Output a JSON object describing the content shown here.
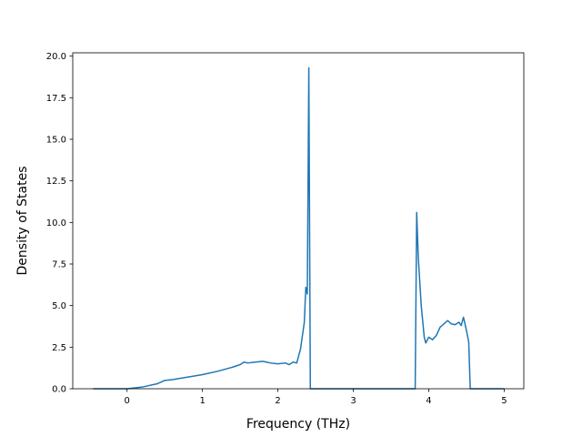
{
  "chart_data": {
    "type": "line",
    "title": "",
    "xlabel": "Frequency (THz)",
    "ylabel": "Density of States",
    "xlim": [
      -0.72,
      5.26
    ],
    "ylim": [
      0,
      20.2
    ],
    "xticks": [
      0,
      1,
      2,
      3,
      4,
      5
    ],
    "xtick_labels": [
      "0",
      "1",
      "2",
      "3",
      "4",
      "5"
    ],
    "yticks": [
      0,
      2.5,
      5,
      7.5,
      10,
      12.5,
      15,
      17.5,
      20
    ],
    "ytick_labels": [
      "0.0",
      "2.5",
      "5.0",
      "7.5",
      "10.0",
      "12.5",
      "15.0",
      "17.5",
      "20.0"
    ],
    "grid": false,
    "legend": "none",
    "colors": {
      "line": "#1f77b4",
      "axes": "#000000",
      "background": "#ffffff"
    },
    "series": [
      {
        "x": [
          -0.45,
          0.0,
          0.2,
          0.4,
          0.5,
          0.6,
          0.8,
          1.0,
          1.2,
          1.4,
          1.5,
          1.55,
          1.6,
          1.7,
          1.8,
          1.85,
          1.9,
          2.0,
          2.1,
          2.15,
          2.2,
          2.25,
          2.3,
          2.35,
          2.37,
          2.39,
          2.41,
          2.43,
          2.45,
          2.5,
          3.0,
          3.5,
          3.8,
          3.82,
          3.84,
          3.86,
          3.9,
          3.94,
          3.96,
          4.0,
          4.05,
          4.1,
          4.15,
          4.2,
          4.25,
          4.3,
          4.35,
          4.4,
          4.43,
          4.46,
          4.5,
          4.53,
          4.55,
          4.6,
          4.8,
          5.0
        ],
        "y": [
          0,
          0,
          0.1,
          0.3,
          0.5,
          0.55,
          0.7,
          0.85,
          1.05,
          1.3,
          1.45,
          1.6,
          1.55,
          1.6,
          1.65,
          1.6,
          1.55,
          1.5,
          1.55,
          1.45,
          1.6,
          1.55,
          2.4,
          4.0,
          6.1,
          5.7,
          19.3,
          0,
          0,
          0,
          0,
          0,
          0,
          0,
          10.6,
          8.0,
          5.0,
          3.1,
          2.75,
          3.1,
          2.95,
          3.2,
          3.7,
          3.9,
          4.1,
          3.9,
          3.85,
          4.0,
          3.8,
          4.3,
          3.5,
          2.8,
          0,
          0,
          0,
          0
        ]
      }
    ]
  }
}
